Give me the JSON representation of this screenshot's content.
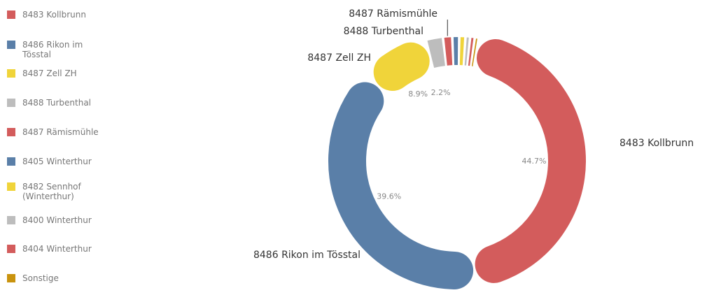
{
  "chart_data": {
    "type": "pie",
    "categories": [
      "8483 Kollbrunn",
      "8486 Rikon im Tösstal",
      "8487 Zell ZH",
      "8488 Turbenthal",
      "8487 Rämismühle",
      "8405 Winterthur",
      "8482 Sennhof (Winterthur)",
      "8400 Winterthur",
      "8404 Winterthur",
      "Sonstige"
    ],
    "values": [
      44.7,
      39.6,
      8.9,
      2.2,
      1.2,
      0.9,
      0.8,
      0.6,
      0.6,
      0.5
    ],
    "value_labels": [
      "44.7%",
      "39.6%",
      "8.9%",
      "2.2%",
      null,
      null,
      null,
      null,
      null,
      null
    ],
    "colors": [
      "#d35c5c",
      "#5a7fa8",
      "#f0d43a",
      "#bdbdbd",
      "#d35c5c",
      "#5a7fa8",
      "#f0d43a",
      "#bdbdbd",
      "#d35c5c",
      "#c9930e"
    ],
    "legend": "left"
  }
}
